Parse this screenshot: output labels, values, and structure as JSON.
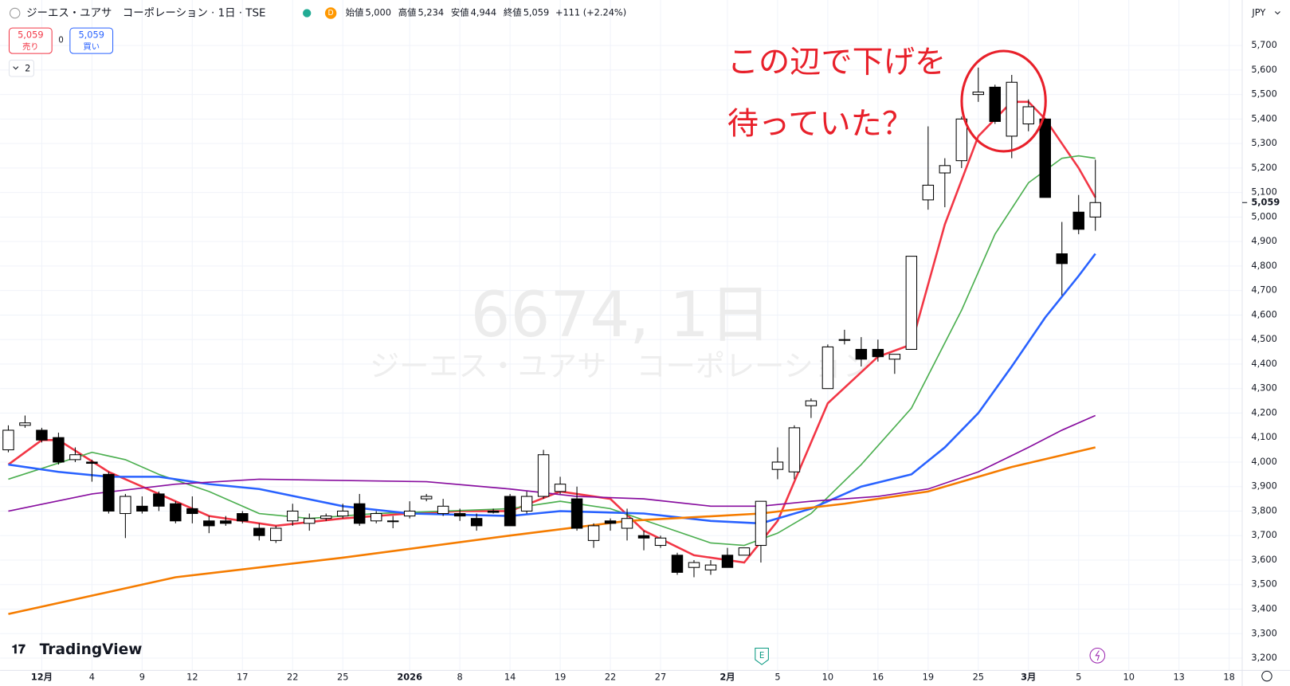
{
  "chart_data": {
    "type": "candlestick",
    "x": [
      0,
      1,
      2,
      3,
      4,
      5,
      6,
      7,
      8,
      9,
      10,
      11,
      12,
      13,
      14,
      15,
      16,
      17,
      18,
      19,
      20,
      21,
      22,
      23,
      24,
      25,
      26,
      27,
      28,
      29,
      30,
      31,
      32,
      33,
      34,
      35,
      36,
      37,
      38,
      39,
      40,
      41,
      42,
      43,
      44,
      45,
      46,
      47,
      48,
      49,
      50,
      51,
      52,
      53,
      54,
      55,
      56,
      57,
      58,
      59,
      60,
      61,
      62,
      63,
      64,
      65
    ],
    "open": [
      4050,
      4150,
      4130,
      4100,
      4010,
      4000,
      3950,
      3790,
      3820,
      3870,
      3830,
      3810,
      3760,
      3760,
      3790,
      3730,
      3680,
      3760,
      3750,
      3770,
      3780,
      3830,
      3760,
      3760,
      3780,
      3850,
      3790,
      3790,
      3770,
      3800,
      3860,
      3800,
      3860,
      3880,
      3850,
      3680,
      3760,
      3730,
      3700,
      3660,
      3620,
      3570,
      3560,
      3620,
      3620,
      3660,
      3970,
      3960,
      4230,
      4300,
      4500,
      4460,
      4460,
      4420,
      4460,
      5070,
      5180,
      5230,
      5500,
      5530,
      5330,
      5380,
      5400,
      4850,
      5020,
      5000
    ],
    "high": [
      4150,
      4190,
      4140,
      4120,
      4060,
      4010,
      3960,
      3870,
      3860,
      3880,
      3840,
      3860,
      3780,
      3780,
      3800,
      3750,
      3740,
      3830,
      3790,
      3790,
      3830,
      3870,
      3800,
      3780,
      3840,
      3870,
      3850,
      3810,
      3790,
      3810,
      3870,
      3880,
      4050,
      3940,
      3900,
      3750,
      3770,
      3810,
      3720,
      3700,
      3630,
      3600,
      3600,
      3650,
      3650,
      3840,
      4060,
      4150,
      4260,
      4480,
      4540,
      4510,
      4500,
      4440,
      4840,
      5370,
      5240,
      5410,
      5610,
      5540,
      5580,
      5480,
      5400,
      4980,
      5090,
      5234
    ],
    "low": [
      4040,
      4140,
      4080,
      3990,
      4000,
      3920,
      3790,
      3690,
      3790,
      3800,
      3750,
      3750,
      3710,
      3740,
      3750,
      3680,
      3670,
      3740,
      3720,
      3760,
      3770,
      3740,
      3750,
      3730,
      3770,
      3840,
      3780,
      3760,
      3720,
      3790,
      3740,
      3790,
      3850,
      3870,
      3720,
      3650,
      3720,
      3680,
      3640,
      3650,
      3540,
      3530,
      3540,
      3570,
      3620,
      3590,
      3930,
      3930,
      4180,
      4300,
      4480,
      4390,
      4410,
      4360,
      4460,
      5030,
      5040,
      5200,
      5470,
      5380,
      5240,
      5350,
      5080,
      4680,
      4930,
      4944
    ],
    "close": [
      4130,
      4160,
      4090,
      4000,
      4030,
      3995,
      3800,
      3860,
      3800,
      3820,
      3760,
      3790,
      3740,
      3750,
      3760,
      3700,
      3730,
      3800,
      3770,
      3780,
      3800,
      3750,
      3790,
      3760,
      3800,
      3860,
      3820,
      3780,
      3740,
      3795,
      3740,
      3860,
      4030,
      3910,
      3730,
      3740,
      3750,
      3770,
      3690,
      3690,
      3550,
      3590,
      3580,
      3570,
      3650,
      3840,
      4000,
      4140,
      4250,
      4470,
      4500,
      4420,
      4430,
      4440,
      4840,
      5130,
      5210,
      5400,
      5510,
      5390,
      5550,
      5450,
      5080,
      4810,
      4950,
      5059
    ],
    "up_color": "#ffffff",
    "down_color": "#000000",
    "series": [
      {
        "color": "#f23645",
        "x": [
          0,
          2,
          3,
          6,
          9,
          12,
          16,
          20,
          24,
          27,
          30,
          33,
          36,
          38,
          41,
          44,
          46,
          49,
          52,
          54,
          56,
          58,
          60,
          61,
          62,
          64,
          65
        ],
        "values": [
          3990,
          4090,
          4090,
          3960,
          3870,
          3780,
          3740,
          3770,
          3790,
          3800,
          3800,
          3880,
          3850,
          3720,
          3620,
          3590,
          3760,
          4240,
          4430,
          4480,
          4970,
          5330,
          5470,
          5470,
          5400,
          5200,
          5080
        ]
      },
      {
        "color": "#4caf50",
        "x": [
          0,
          5,
          7,
          9,
          12,
          15,
          18,
          22,
          26,
          30,
          33,
          36,
          39,
          42,
          44,
          46,
          48,
          51,
          54,
          57,
          59,
          61,
          63,
          64,
          65
        ],
        "values": [
          3930,
          4040,
          4010,
          3950,
          3880,
          3790,
          3770,
          3790,
          3800,
          3810,
          3840,
          3810,
          3740,
          3670,
          3660,
          3710,
          3790,
          3990,
          4220,
          4620,
          4930,
          5140,
          5240,
          5250,
          5240
        ]
      },
      {
        "color": "#2962ff",
        "x": [
          0,
          3,
          6,
          9,
          12,
          15,
          20,
          24,
          30,
          33,
          38,
          42,
          45,
          48,
          51,
          54,
          56,
          58,
          60,
          62,
          64,
          65
        ],
        "values": [
          3990,
          3960,
          3940,
          3940,
          3910,
          3890,
          3820,
          3790,
          3780,
          3800,
          3790,
          3760,
          3750,
          3810,
          3900,
          3950,
          4060,
          4200,
          4390,
          4590,
          4760,
          4850
        ]
      },
      {
        "color": "#880e9f",
        "x": [
          0,
          5,
          10,
          15,
          25,
          30,
          34,
          38,
          42,
          45,
          48,
          52,
          55,
          58,
          61,
          63,
          65
        ],
        "values": [
          3800,
          3870,
          3910,
          3930,
          3920,
          3890,
          3860,
          3850,
          3820,
          3820,
          3840,
          3860,
          3890,
          3960,
          4060,
          4130,
          4190
        ]
      },
      {
        "color": "#f57c00",
        "x": [
          0,
          10,
          20,
          30,
          37,
          45,
          50,
          55,
          60,
          65
        ],
        "values": [
          3380,
          3530,
          3610,
          3700,
          3760,
          3790,
          3830,
          3880,
          3980,
          4060
        ]
      }
    ],
    "xlim": [
      -0.492,
      73.78
    ],
    "xticks": [
      {
        "value": 2,
        "label": "12月"
      },
      {
        "value": 5,
        "label": "4"
      },
      {
        "value": 8,
        "label": "9"
      },
      {
        "value": 11,
        "label": "12"
      },
      {
        "value": 14,
        "label": "17"
      },
      {
        "value": 17,
        "label": "22"
      },
      {
        "value": 20,
        "label": "25"
      },
      {
        "value": 24,
        "label": "2026"
      },
      {
        "value": 27,
        "label": "8"
      },
      {
        "value": 30,
        "label": "14"
      },
      {
        "value": 33,
        "label": "19"
      },
      {
        "value": 36,
        "label": "22"
      },
      {
        "value": 39,
        "label": "27"
      },
      {
        "value": 43,
        "label": "2月"
      },
      {
        "value": 46,
        "label": "5"
      },
      {
        "value": 49,
        "label": "10"
      },
      {
        "value": 52,
        "label": "16"
      },
      {
        "value": 55,
        "label": "19"
      },
      {
        "value": 58,
        "label": "25"
      },
      {
        "value": 61,
        "label": "3月"
      },
      {
        "value": 64,
        "label": "5"
      },
      {
        "value": 67,
        "label": "10"
      },
      {
        "value": 70,
        "label": "13"
      },
      {
        "value": 73,
        "label": "18"
      }
    ],
    "ylim": [
      3150,
      5785
    ],
    "yticks": [
      {
        "value": 3200,
        "label": "3,200"
      },
      {
        "value": 3300,
        "label": "3,300"
      },
      {
        "value": 3400,
        "label": "3,400"
      },
      {
        "value": 3500,
        "label": "3,500"
      },
      {
        "value": 3600,
        "label": "3,600"
      },
      {
        "value": 3700,
        "label": "3,700"
      },
      {
        "value": 3800,
        "label": "3,800"
      },
      {
        "value": 3900,
        "label": "3,900"
      },
      {
        "value": 4000,
        "label": "4,000"
      },
      {
        "value": 4100,
        "label": "4,100"
      },
      {
        "value": 4200,
        "label": "4,200"
      },
      {
        "value": 4300,
        "label": "4,300"
      },
      {
        "value": 4400,
        "label": "4,400"
      },
      {
        "value": 4500,
        "label": "4,500"
      },
      {
        "value": 4600,
        "label": "4,600"
      },
      {
        "value": 4700,
        "label": "4,700"
      },
      {
        "value": 4800,
        "label": "4,800"
      },
      {
        "value": 4900,
        "label": "4,900"
      },
      {
        "value": 5000,
        "label": "5,000"
      },
      {
        "value": 5100,
        "label": "5,100"
      },
      {
        "value": 5200,
        "label": "5,200"
      },
      {
        "value": 5300,
        "label": "5,300"
      },
      {
        "value": 5400,
        "label": "5,400"
      },
      {
        "value": 5500,
        "label": "5,500"
      },
      {
        "value": 5600,
        "label": "5,600"
      },
      {
        "value": 5700,
        "label": "5,700"
      }
    ],
    "grid": true,
    "last_price": {
      "value": 5059,
      "label": "5,059"
    },
    "annotations": [
      "この辺で下げを",
      "待っていた？"
    ]
  },
  "ui": {
    "symbol": "ジーエス・ユアサ　コーポレーション · 1日 · TSE",
    "badge": "D",
    "ohlc": [
      {
        "label": "始値",
        "value": "5,000"
      },
      {
        "label": "高値",
        "value": "5,234"
      },
      {
        "label": "安値",
        "value": "4,944"
      },
      {
        "label": "終値",
        "value": "5,059"
      }
    ],
    "change": "+111 (+2.24%)",
    "sell": {
      "price": "5,059",
      "label": "売り"
    },
    "spread": "0",
    "buy": {
      "price": "5,059",
      "label": "買い"
    },
    "indicators": "2",
    "currency": "JPY",
    "logo": "TradingView",
    "watermark": {
      "line1": "6674, 1日",
      "line2": "ジーエス・ユアサ　コーポレーション"
    },
    "event": "E"
  }
}
